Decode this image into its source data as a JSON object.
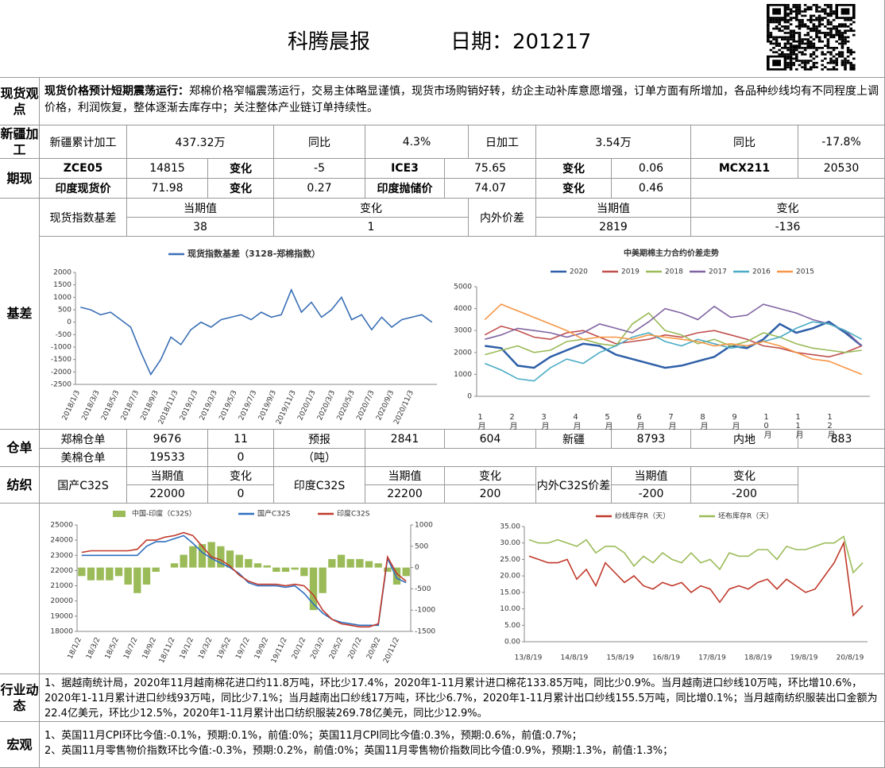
{
  "header": {
    "title": "科腾晨报",
    "date": "日期：201217"
  },
  "spot_view": {
    "label": "现货观点",
    "lead": "现货价格预计短期震荡运行：",
    "text": "郑棉价格窄幅震荡运行，交易主体略显谨慎，现货市场购销好转，纺企主动补库意愿增强，订单方面有所增加，各品种纱线均有不同程度上调价格，利润恢复，整体逐渐去库存中；关注整体产业链订单持续性。"
  },
  "xinjiang": {
    "label": "新疆加工",
    "cells": [
      "新疆累计加工",
      "437.32万",
      "同比",
      "4.3%",
      "日加工",
      "3.54万",
      "同比",
      "-17.8%"
    ]
  },
  "futures": {
    "label": "期现",
    "rows": [
      [
        "ZCE05",
        "14815",
        "变化",
        "-5",
        "ICE3",
        "75.65",
        "变化",
        "0.06",
        "MCX211",
        "20530"
      ],
      [
        "印度现货价",
        "71.98",
        "变化",
        "0.27",
        "印度抛储价",
        "74.07",
        "变化",
        "0.46"
      ]
    ]
  },
  "basis": {
    "label": "基差",
    "spot_label": "现货指数基差",
    "head1": [
      "当期值",
      "变化"
    ],
    "vals1": [
      "38",
      "1"
    ],
    "spread_label": "内外价差",
    "head2": [
      "当期值",
      "变化"
    ],
    "vals2": [
      "2819",
      "-136"
    ]
  },
  "warehouse": {
    "label": "仓单",
    "rows": [
      [
        "郑棉仓单",
        "9676",
        "11",
        "预报",
        "2841",
        "604",
        "新疆",
        "8793",
        "内地",
        "883"
      ],
      [
        "美棉仓单",
        "19533",
        "0",
        "（吨）"
      ]
    ]
  },
  "textile": {
    "label": "纺织",
    "heads": [
      "国产C32S",
      "当期值",
      "变化",
      "印度C32S",
      "当期值",
      "变化",
      "内外C32S价差",
      "当期值",
      "变化"
    ],
    "values": [
      "22000",
      "0",
      "22200",
      "200",
      "-200",
      "-200"
    ]
  },
  "charts": [
    {
      "type": "line",
      "ylim": [
        -2500,
        2000
      ],
      "yticks": [
        2000,
        1500,
        1000,
        500,
        0,
        -500,
        -1000,
        -1500,
        -2000,
        -2500
      ],
      "xlabels": [
        "2018/1/3",
        "2018/3/3",
        "2018/5/3",
        "2018/7/3",
        "2018/9/3",
        "2018/11/3",
        "2019/1/3",
        "2019/3/3",
        "2019/5/3",
        "2019/7/3",
        "2019/9/3",
        "2019/11/3",
        "2020/1/3",
        "2020/3/3",
        "2020/5/3",
        "2020/7/3",
        "2020/9/3",
        "2020/11/3"
      ],
      "series": [
        {
          "name": "现货指数基差（3128-郑棉指数）",
          "color": "#3a6fb5",
          "values": [
            600,
            500,
            300,
            400,
            100,
            -200,
            -1200,
            -2100,
            -1500,
            -600,
            -900,
            -300,
            0,
            -200,
            100,
            200,
            300,
            100,
            400,
            200,
            300,
            1300,
            400,
            800,
            200,
            500,
            1000,
            100,
            300,
            -300,
            200,
            -200,
            100,
            200,
            300,
            0
          ]
        }
      ]
    },
    {
      "type": "line",
      "title": "中美期棉主力合约价差走势",
      "ylim": [
        0,
        5000
      ],
      "yticks": [
        0,
        1000,
        2000,
        3000,
        4000,
        5000
      ],
      "xlabels": [
        "1月",
        "2月",
        "3月",
        "4月",
        "5月",
        "6月",
        "7月",
        "8月",
        "9月",
        "10月",
        "11月",
        "12月"
      ],
      "series": [
        {
          "name": "2020",
          "color": "#2e5fa8",
          "values": [
            2300,
            2200,
            1400,
            1300,
            1800,
            2100,
            2400,
            2300,
            1900,
            1700,
            1500,
            1300,
            1400,
            1600,
            1800,
            2300,
            2200,
            2600,
            3300,
            2900,
            3100,
            3400,
            2900,
            2300
          ]
        },
        {
          "name": "2019",
          "color": "#c0504d",
          "values": [
            2800,
            3200,
            3000,
            2700,
            2600,
            2900,
            3000,
            2700,
            2400,
            2500,
            2600,
            2800,
            2700,
            2900,
            3000,
            2800,
            2600,
            2300,
            2200,
            2000,
            1900,
            1800,
            2000,
            2300
          ]
        },
        {
          "name": "2018",
          "color": "#9bbb59",
          "values": [
            1900,
            2100,
            2300,
            2000,
            2100,
            2500,
            2600,
            2400,
            2300,
            3300,
            3800,
            3000,
            2800,
            2400,
            2600,
            2300,
            2500,
            2900,
            2700,
            2400,
            2200,
            2100,
            2000,
            2100
          ]
        },
        {
          "name": "2017",
          "color": "#8064a2",
          "values": [
            2600,
            2800,
            3100,
            3000,
            2900,
            2700,
            2900,
            3300,
            3100,
            2900,
            3400,
            4000,
            3800,
            3500,
            4100,
            3600,
            3700,
            4200,
            4000,
            3800,
            3500,
            3300,
            3000,
            2300
          ]
        },
        {
          "name": "2016",
          "color": "#4bacc6",
          "values": [
            1500,
            1200,
            800,
            700,
            1300,
            1700,
            1500,
            2000,
            2300,
            2700,
            2900,
            2500,
            2300,
            2600,
            2400,
            2200,
            2300,
            2500,
            2700,
            3100,
            3400,
            3300,
            3000,
            2600
          ]
        },
        {
          "name": "2015",
          "color": "#f79646",
          "values": [
            3500,
            4200,
            3900,
            3600,
            3300,
            3000,
            2600,
            2700,
            2700,
            2600,
            2800,
            2700,
            2600,
            2500,
            2300,
            2400,
            2300,
            2500,
            2300,
            2000,
            1700,
            1600,
            1300,
            1000
          ]
        }
      ]
    },
    {
      "type": "bar-line",
      "ylim": [
        18000,
        25000
      ],
      "yticks": [
        25000,
        24000,
        23000,
        22000,
        21000,
        20000,
        19000,
        18000
      ],
      "y2lim": [
        -1500,
        1000
      ],
      "y2ticks": [
        1000,
        500,
        0,
        -500,
        -1000,
        -1500
      ],
      "xlabels": [
        "18/1/2",
        "18/3/2",
        "18/5/2",
        "18/7/2",
        "18/9/2",
        "18/11/2",
        "19/1/2",
        "19/3/2",
        "19/5/2",
        "19/7/2",
        "19/9/2",
        "19/11/2",
        "20/1/2",
        "20/3/2",
        "20/5/2",
        "20/7/2",
        "20/9/2",
        "20/11/2"
      ],
      "series": [
        {
          "name": "中国-印度（C32S）",
          "type": "bar",
          "axis": "y2",
          "color": "#9bbb59",
          "values": [
            -200,
            -300,
            -300,
            -300,
            -200,
            -400,
            -600,
            -400,
            -100,
            0,
            100,
            300,
            500,
            550,
            600,
            500,
            400,
            300,
            200,
            100,
            50,
            -100,
            -100,
            -50,
            -200,
            -1000,
            -600,
            200,
            300,
            200,
            200,
            150,
            100,
            -100,
            -400,
            -200
          ]
        },
        {
          "name": "国产C32S",
          "color": "#2e6fbf",
          "values": [
            23000,
            23000,
            23000,
            23000,
            23000,
            23000,
            23000,
            23600,
            23900,
            23900,
            24100,
            24300,
            23800,
            23200,
            22800,
            22500,
            22200,
            21800,
            21200,
            21000,
            21000,
            21000,
            20900,
            21000,
            20500,
            19800,
            19200,
            18800,
            18600,
            18500,
            18400,
            18400,
            18400,
            22800,
            21500,
            21200
          ]
        },
        {
          "name": "印度C32S",
          "color": "#c0392b",
          "values": [
            23200,
            23300,
            23300,
            23300,
            23300,
            23300,
            23400,
            24000,
            24000,
            24200,
            24300,
            24500,
            24300,
            23600,
            22900,
            22700,
            22300,
            21700,
            21300,
            21100,
            21100,
            21100,
            21000,
            21100,
            21000,
            20400,
            19400,
            18800,
            18500,
            18400,
            18300,
            18300,
            18500,
            22900,
            21800,
            21300
          ]
        }
      ]
    },
    {
      "type": "line",
      "ylim": [
        0,
        35
      ],
      "yticks": [
        {
          "value": 35,
          "label": "35.00"
        },
        {
          "value": 30,
          "label": "30.00"
        },
        {
          "value": 25,
          "label": "25.00"
        },
        {
          "value": 20,
          "label": "20.00"
        },
        {
          "value": 15,
          "label": "15.00"
        },
        {
          "value": 10,
          "label": "10.00"
        },
        {
          "value": 5,
          "label": "5.00"
        },
        {
          "value": 0,
          "label": "0.00"
        }
      ],
      "xlabels": [
        "13/8/19",
        "14/8/19",
        "15/8/19",
        "16/8/19",
        "17/8/19",
        "18/8/19",
        "19/8/19",
        "20/8/19"
      ],
      "series": [
        {
          "name": "纱线库存R（天）",
          "color": "#c0392b",
          "values": [
            26,
            25,
            24,
            24,
            25,
            19,
            22,
            17,
            24,
            21,
            18,
            20,
            17,
            16,
            18,
            17,
            18,
            15,
            17,
            16,
            12,
            16,
            17,
            16,
            18,
            19,
            16,
            19,
            17,
            15,
            16,
            20,
            24,
            30,
            8,
            11
          ]
        },
        {
          "name": "坯布库存R（天）",
          "color": "#9bbb59",
          "values": [
            31,
            30,
            30,
            31,
            30,
            29,
            31,
            27,
            29,
            29,
            27,
            23,
            26,
            24,
            27,
            25,
            24,
            27,
            24,
            25,
            22,
            27,
            26,
            26,
            28,
            28,
            25,
            29,
            28,
            28,
            29,
            30,
            30,
            32,
            21,
            24
          ]
        }
      ]
    }
  ],
  "chart_row_label": "",
  "industry": {
    "label": "行业动态",
    "text": "1、据越南统计局，2020年11月越南棉花进口约11.8万吨，环比少17.4%，2020年1-11月累计进口棉花133.85万吨，同比少0.9%。当月越南进口纱线10万吨，环比增10.6%，2020年1-11月累计进口纱线93万吨，同比少7.1%；当月越南出口纱线17万吨，环比少6.7%，2020年1-11月累计出口纱线155.5万吨，同比增0.1%；当月越南纺织服装出口金额为22.4亿美元，环比少12.5%，2020年1-11月累计出口纺织服装269.78亿美元，同比少12.9%。"
  },
  "macro": {
    "label": "宏观",
    "lines": [
      "1、英国11月CPI环比今值:-0.1%，预期:0.1%，前值:0%；英国11月CPI同比今值:0.3%，预期:0.6%，前值:0.7%；",
      "2、英国11月零售物价指数环比今值:-0.3%，预期:0.2%，前值:0%；英国11月零售物价指数同比今值:0.9%，预期:1.3%，前值:1.3%；"
    ]
  }
}
